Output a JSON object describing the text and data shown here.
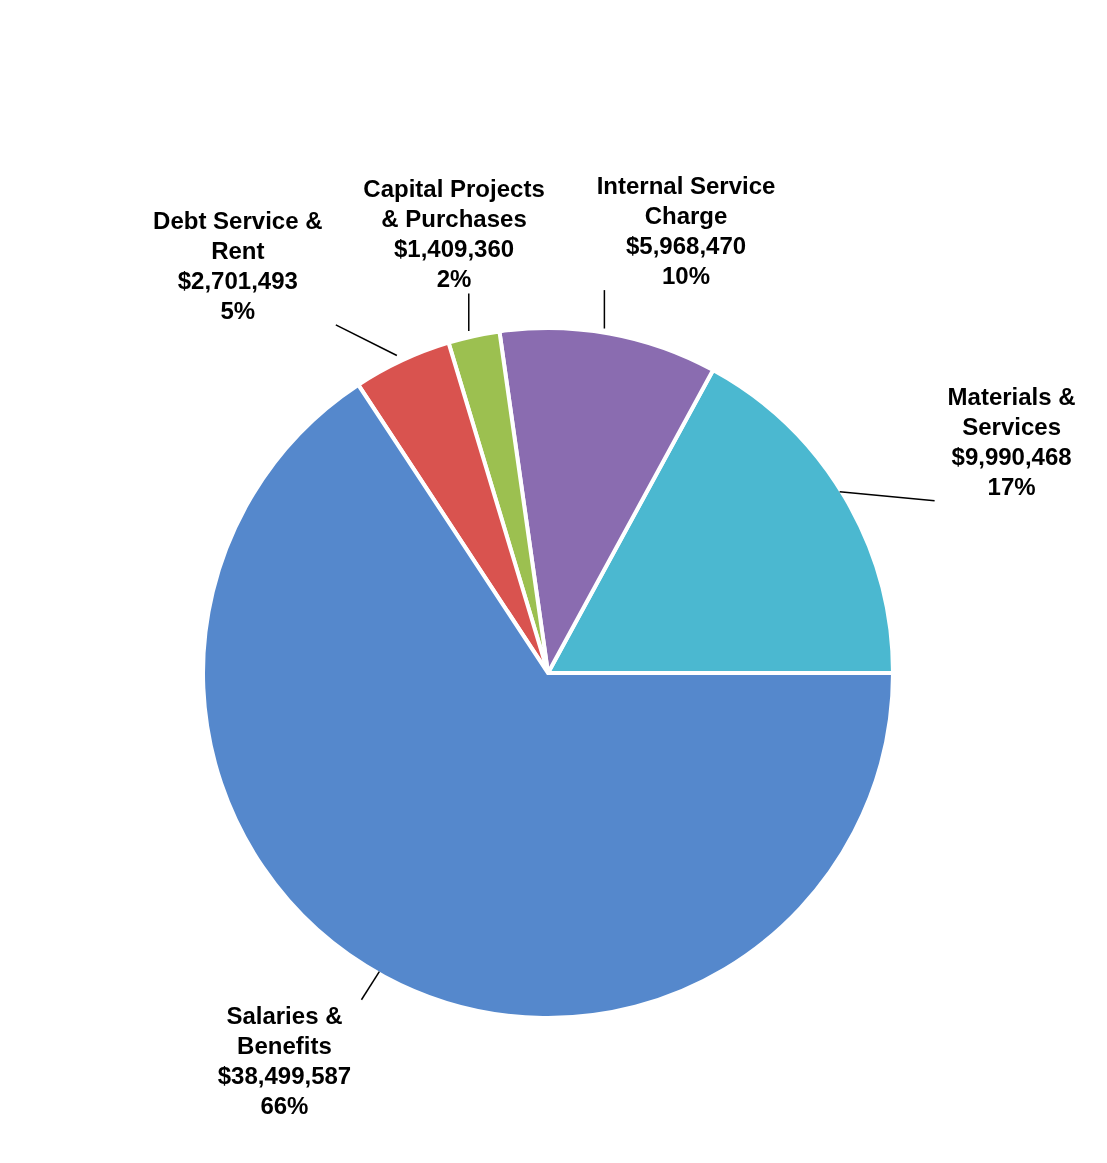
{
  "chart_data": {
    "type": "pie",
    "categories": [
      "Materials & Services",
      "Internal Service Charge",
      "Capital Projects & Purchases",
      "Debt Service & Rent",
      "Salaries & Benefits"
    ],
    "values": [
      9990468,
      5968470,
      1409360,
      2701493,
      38499587
    ],
    "colors": [
      "#4bb8d0",
      "#8a6cb0",
      "#9cc050",
      "#d9534f",
      "#5588cc"
    ],
    "value_labels": [
      "$9,990,468\n17%",
      "$5,968,470\n10%",
      "$1,409,360\n2%",
      "$2,701,493\n5%",
      "$38,499,587\n66%"
    ]
  }
}
